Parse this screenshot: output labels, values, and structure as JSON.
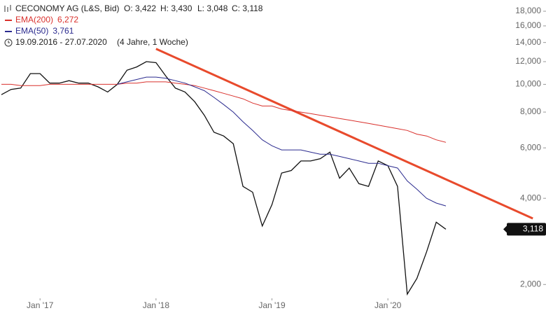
{
  "chart_data": {
    "type": "line",
    "title": "CECONOMY AG (L&S, Bid)",
    "ohlc": [
      "O: 3,422",
      "H: 3,430",
      "L: 3,048",
      "C: 3,118"
    ],
    "period": "19.09.2016 - 27.07.2020",
    "period_note": "(4 Jahre, 1 Woche)",
    "log_scale": true,
    "grid": false,
    "x": [
      "2016-09",
      "2016-10",
      "2016-11",
      "2016-12",
      "2017-01",
      "2017-02",
      "2017-03",
      "2017-04",
      "2017-05",
      "2017-06",
      "2017-07",
      "2017-08",
      "2017-09",
      "2017-10",
      "2017-11",
      "2017-12",
      "2018-01",
      "2018-02",
      "2018-03",
      "2018-04",
      "2018-05",
      "2018-06",
      "2018-07",
      "2018-08",
      "2018-09",
      "2018-10",
      "2018-11",
      "2018-12",
      "2019-01",
      "2019-02",
      "2019-03",
      "2019-04",
      "2019-05",
      "2019-06",
      "2019-07",
      "2019-08",
      "2019-09",
      "2019-10",
      "2019-11",
      "2019-12",
      "2020-01",
      "2020-02",
      "2020-03",
      "2020-04",
      "2020-05",
      "2020-06",
      "2020-07"
    ],
    "xlim": [
      "2016-09",
      "2021-05"
    ],
    "xticks": [
      {
        "value": "2017-01",
        "label": "Jan '17"
      },
      {
        "value": "2018-01",
        "label": "Jan '18"
      },
      {
        "value": "2019-01",
        "label": "Jan '19"
      },
      {
        "value": "2020-01",
        "label": "Jan '20"
      }
    ],
    "ylim": [
      1.8,
      19.7
    ],
    "yticks": [
      {
        "value": 2,
        "label": "2,000"
      },
      {
        "value": 4,
        "label": "4,000"
      },
      {
        "value": 6,
        "label": "6,000"
      },
      {
        "value": 8,
        "label": "8,000"
      },
      {
        "value": 10,
        "label": "10,000"
      },
      {
        "value": 12,
        "label": "12,000"
      },
      {
        "value": 14,
        "label": "14,000"
      },
      {
        "value": 16,
        "label": "16,000"
      },
      {
        "value": 18,
        "label": "18,000"
      }
    ],
    "series": [
      {
        "color": "#111111",
        "last_label": "3,118",
        "values": [
          9.2,
          9.6,
          9.7,
          10.9,
          10.9,
          10.1,
          10.1,
          10.3,
          10.1,
          10.1,
          9.8,
          9.4,
          10.0,
          11.2,
          11.5,
          12.0,
          11.9,
          10.7,
          9.7,
          9.4,
          8.7,
          7.8,
          6.8,
          6.6,
          6.2,
          4.4,
          4.2,
          3.2,
          3.8,
          4.9,
          5.0,
          5.4,
          5.4,
          5.5,
          5.8,
          4.7,
          5.1,
          4.5,
          4.4,
          5.4,
          5.2,
          4.4,
          1.85,
          2.1,
          2.6,
          3.3,
          3.118
        ]
      },
      {
        "name": "EMA(200)",
        "color": "#d9302c",
        "last_label": "6,272",
        "values": [
          10.0,
          10.0,
          9.9,
          9.9,
          9.9,
          10.0,
          10.0,
          10.0,
          10.0,
          10.0,
          10.0,
          10.0,
          10.0,
          10.1,
          10.1,
          10.2,
          10.2,
          10.2,
          10.1,
          10.0,
          9.9,
          9.7,
          9.5,
          9.3,
          9.1,
          8.9,
          8.6,
          8.4,
          8.4,
          8.2,
          8.1,
          8.0,
          7.9,
          7.8,
          7.7,
          7.6,
          7.5,
          7.4,
          7.3,
          7.2,
          7.1,
          7.0,
          6.9,
          6.7,
          6.6,
          6.4,
          6.272
        ]
      },
      {
        "name": "EMA(50)",
        "color": "#2b2b8f",
        "last_label": "3,761",
        "values": [
          null,
          null,
          null,
          null,
          null,
          null,
          null,
          null,
          null,
          null,
          null,
          null,
          10.0,
          10.2,
          10.4,
          10.6,
          10.6,
          10.5,
          10.3,
          10.1,
          9.8,
          9.5,
          9.0,
          8.5,
          8.0,
          7.4,
          6.9,
          6.4,
          6.1,
          5.9,
          5.9,
          5.9,
          5.8,
          5.7,
          5.7,
          5.6,
          5.5,
          5.4,
          5.3,
          5.3,
          5.2,
          5.1,
          4.6,
          4.3,
          4.0,
          3.85,
          3.761
        ]
      }
    ],
    "trend_line": {
      "color": "#e84a2c",
      "x": [
        "2018-01",
        "2021-04"
      ],
      "values": [
        13.3,
        3.4
      ]
    }
  }
}
